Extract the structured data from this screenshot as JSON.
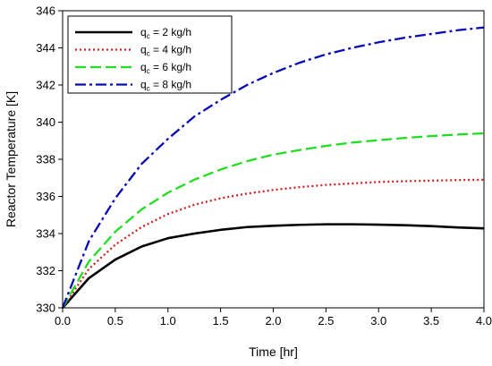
{
  "chart_data": {
    "type": "line",
    "xlabel": "Time [hr]",
    "ylabel": "Reactor Temperature [K]",
    "xlim": [
      0,
      4.0
    ],
    "ylim": [
      330,
      346
    ],
    "xticks": [
      "0.0",
      "0.5",
      "1.0",
      "1.5",
      "2.0",
      "2.5",
      "3.0",
      "3.5",
      "4.0"
    ],
    "yticks": [
      "330",
      "332",
      "334",
      "336",
      "338",
      "340",
      "342",
      "344",
      "346"
    ],
    "grid": false,
    "legend_position": "top-left",
    "x": [
      0,
      0.25,
      0.5,
      0.75,
      1.0,
      1.25,
      1.5,
      1.75,
      2.0,
      2.25,
      2.5,
      2.75,
      3.0,
      3.25,
      3.5,
      3.75,
      4.0
    ],
    "series": [
      {
        "legend": {
          "prefix": "q",
          "sub": "c",
          "suffix": " = 2 kg/h"
        },
        "color": "#000000",
        "style": "solid",
        "values": [
          330.0,
          331.6,
          332.6,
          333.3,
          333.75,
          334.0,
          334.2,
          334.35,
          334.42,
          334.47,
          334.5,
          334.5,
          334.48,
          334.45,
          334.4,
          334.33,
          334.28
        ]
      },
      {
        "legend": {
          "prefix": "q",
          "sub": "c",
          "suffix": " = 4 kg/h"
        },
        "color": "#cc2222",
        "style": "dotted",
        "values": [
          330.0,
          332.1,
          333.4,
          334.35,
          335.05,
          335.55,
          335.9,
          336.15,
          336.35,
          336.5,
          336.62,
          336.7,
          336.78,
          336.82,
          336.85,
          336.88,
          336.9
        ]
      },
      {
        "legend": {
          "prefix": "q",
          "sub": "c",
          "suffix": " = 6 kg/h"
        },
        "color": "#22dd22",
        "style": "dashed",
        "values": [
          330.0,
          332.5,
          334.1,
          335.3,
          336.2,
          336.9,
          337.45,
          337.9,
          338.25,
          338.5,
          338.72,
          338.9,
          339.03,
          339.15,
          339.25,
          339.33,
          339.4
        ]
      },
      {
        "legend": {
          "prefix": "q",
          "sub": "c",
          "suffix": " = 8 kg/h"
        },
        "color": "#0a0ab4",
        "style": "dashdot",
        "values": [
          330.0,
          333.6,
          335.9,
          337.75,
          339.1,
          340.3,
          341.2,
          342.0,
          342.65,
          343.2,
          343.65,
          344.0,
          344.3,
          344.55,
          344.75,
          344.95,
          345.1
        ]
      }
    ]
  }
}
